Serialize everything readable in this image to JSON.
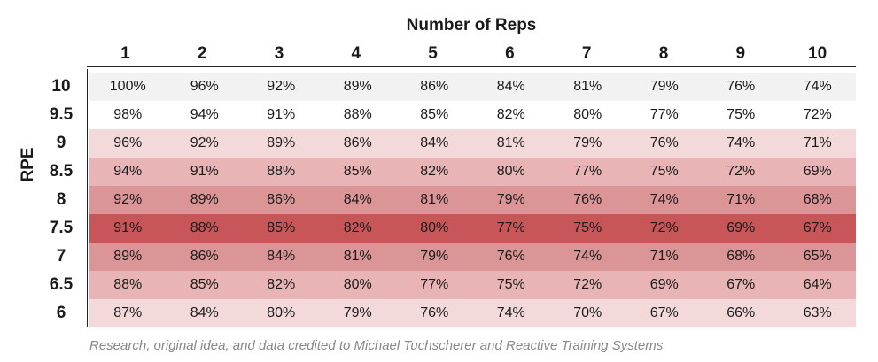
{
  "chart_data": {
    "type": "table",
    "title": "Number of Reps",
    "ylabel": "RPE",
    "columns": [
      "1",
      "2",
      "3",
      "4",
      "5",
      "6",
      "7",
      "8",
      "9",
      "10"
    ],
    "rows": [
      {
        "label": "10",
        "color": "#f2f2f2",
        "values": [
          "100%",
          "96%",
          "92%",
          "89%",
          "86%",
          "84%",
          "81%",
          "79%",
          "76%",
          "74%"
        ]
      },
      {
        "label": "9.5",
        "color": "#ffffff",
        "values": [
          "98%",
          "94%",
          "91%",
          "88%",
          "85%",
          "82%",
          "80%",
          "77%",
          "75%",
          "72%"
        ]
      },
      {
        "label": "9",
        "color": "#f4d9db",
        "values": [
          "96%",
          "92%",
          "89%",
          "86%",
          "84%",
          "81%",
          "79%",
          "76%",
          "74%",
          "71%"
        ]
      },
      {
        "label": "8.5",
        "color": "#e8b4b6",
        "values": [
          "94%",
          "91%",
          "88%",
          "85%",
          "82%",
          "80%",
          "77%",
          "75%",
          "72%",
          "69%"
        ]
      },
      {
        "label": "8",
        "color": "#dc9597",
        "values": [
          "92%",
          "89%",
          "86%",
          "84%",
          "81%",
          "79%",
          "76%",
          "74%",
          "71%",
          "68%"
        ]
      },
      {
        "label": "7.5",
        "color": "#c85558",
        "values": [
          "91%",
          "88%",
          "85%",
          "82%",
          "80%",
          "77%",
          "75%",
          "72%",
          "69%",
          "67%"
        ]
      },
      {
        "label": "7",
        "color": "#dc9597",
        "values": [
          "89%",
          "86%",
          "84%",
          "81%",
          "79%",
          "76%",
          "74%",
          "71%",
          "68%",
          "65%"
        ]
      },
      {
        "label": "6.5",
        "color": "#e8b4b6",
        "values": [
          "88%",
          "85%",
          "82%",
          "80%",
          "77%",
          "75%",
          "72%",
          "69%",
          "67%",
          "64%"
        ]
      },
      {
        "label": "6",
        "color": "#f4d9db",
        "values": [
          "87%",
          "84%",
          "80%",
          "79%",
          "76%",
          "74%",
          "70%",
          "67%",
          "66%",
          "63%"
        ]
      }
    ]
  },
  "footer": "Research, original idea, and data credited to Michael Tuchscherer and Reactive Training Systems"
}
